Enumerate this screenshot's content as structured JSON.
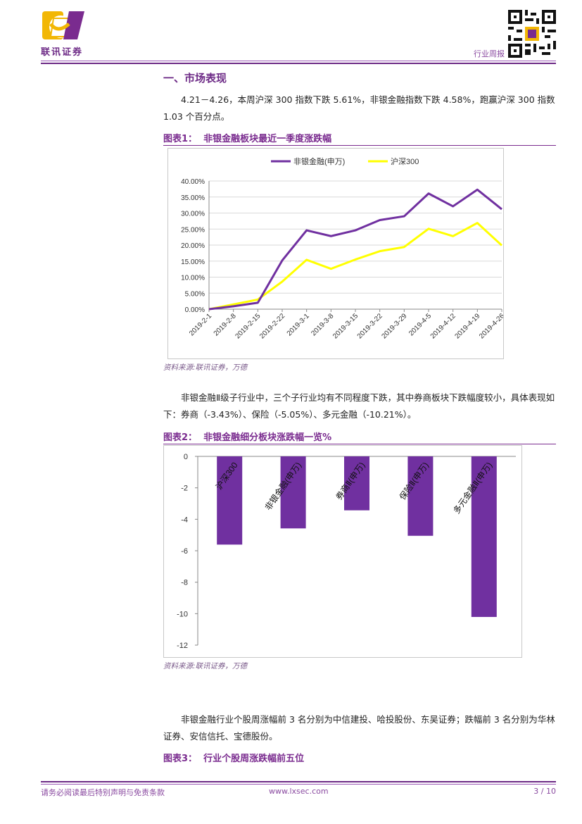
{
  "header": {
    "logo_text": "联讯证券",
    "report_type": "行业周报"
  },
  "section": {
    "title": "一、市场表现"
  },
  "paragraphs": {
    "p1": "4.21－4.26，本周沪深 300 指数下跌 5.61%，非银金融指数下跌 4.58%，跑赢沪深 300 指数 1.03 个百分点。",
    "p2": "非银金融Ⅱ级子行业中，三个子行业均有不同程度下跌，其中券商板块下跌幅度较小，具体表现如下：券商（-3.43%）、保险（-5.05%）、多元金融（-10.21%）。",
    "p3": "非银金融行业个股周涨幅前 3 名分别为中信建投、哈投股份、东吴证券；跌幅前 3 名分别为华林证券、安信信托、宝德股份。"
  },
  "figures": {
    "fig1_label": "图表1：",
    "fig1_title": "非银金融板块最近一季度涨跌幅",
    "fig2_label": "图表2：",
    "fig2_title": "非银金融细分板块涨跌幅一览%",
    "fig3_label": "图表3：",
    "fig3_title": "行业个股周涨跌幅前五位",
    "source1": "资料来源:联讯证券，万德",
    "source2": "资料来源:联讯证券，万德"
  },
  "chart_data": [
    {
      "type": "line",
      "title": "",
      "categories": [
        "2019-2-1",
        "2019-2-8",
        "2019-2-15",
        "2019-2-22",
        "2019-3-1",
        "2019-3-8",
        "2019-3-15",
        "2019-3-22",
        "2019-3-29",
        "2019-4-5",
        "2019-4-12",
        "2019-4-19",
        "2019-4-26"
      ],
      "series": [
        {
          "name": "非银金融(申万)",
          "color": "#7030a0",
          "values": [
            0.0,
            0.9,
            2.0,
            15.2,
            24.6,
            22.8,
            24.6,
            27.8,
            29.0,
            36.1,
            32.1,
            37.3,
            31.2
          ]
        },
        {
          "name": "沪深300",
          "color": "#ffff00",
          "values": [
            0.0,
            1.5,
            3.0,
            8.6,
            15.4,
            12.6,
            15.5,
            18.1,
            19.4,
            25.1,
            22.8,
            26.9,
            19.9
          ]
        }
      ],
      "y_tick_labels": [
        "0.00%",
        "5.00%",
        "10.00%",
        "15.00%",
        "20.00%",
        "25.00%",
        "30.00%",
        "35.00%",
        "40.00%"
      ],
      "ylim": [
        0,
        40
      ],
      "xlabel": "",
      "ylabel": "",
      "legend_position": "top"
    },
    {
      "type": "bar",
      "title": "",
      "categories": [
        "沪深300",
        "非银金融(申万)",
        "券商Ⅱ(申万)",
        "保险Ⅱ(申万)",
        "多元金融Ⅱ(申万)"
      ],
      "values": [
        -5.61,
        -4.58,
        -3.43,
        -5.05,
        -10.21
      ],
      "color": "#7030a0",
      "y_tick_labels": [
        "0",
        "-2",
        "-4",
        "-6",
        "-8",
        "-10",
        "-12"
      ],
      "ylim": [
        -12,
        0
      ],
      "xlabel": "",
      "ylabel": ""
    }
  ],
  "footer": {
    "disclaimer": "请务必阅读最后特别声明与免责条款",
    "website": "www.lxsec.com",
    "page": "3 / 10"
  },
  "colors": {
    "brand": "#6d2a86",
    "accent_yellow": "#ffff00"
  }
}
